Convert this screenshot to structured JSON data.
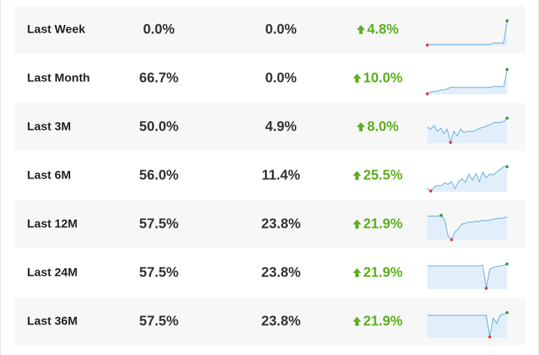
{
  "rows": [
    {
      "label": "Last Week",
      "col1": "0.0%",
      "col2": "0.0%",
      "change": "4.8%",
      "sparkline": [
        0,
        1,
        1,
        1,
        1,
        1,
        1,
        1,
        1,
        1,
        1,
        1,
        1,
        1,
        1,
        1,
        1,
        1,
        1,
        3,
        3,
        3,
        3,
        35
      ]
    },
    {
      "label": "Last Month",
      "col1": "66.7%",
      "col2": "0.0%",
      "change": "10.0%",
      "sparkline": [
        0,
        2,
        3,
        3,
        5,
        5,
        6,
        8,
        8,
        8,
        8,
        8,
        8,
        8,
        8,
        8,
        8,
        8,
        8,
        8,
        9,
        9,
        9,
        9,
        30
      ]
    },
    {
      "label": "Last 3M",
      "col1": "50.0%",
      "col2": "4.9%",
      "change": "8.0%",
      "sparkline": [
        14,
        12,
        15,
        10,
        13,
        8,
        12,
        0,
        10,
        6,
        12,
        9,
        10,
        10,
        10,
        12,
        13,
        14,
        15,
        16,
        18,
        18,
        18,
        19,
        22
      ]
    },
    {
      "label": "Last 6M",
      "col1": "56.0%",
      "col2": "11.4%",
      "change": "25.5%",
      "sparkline": [
        4,
        0,
        6,
        8,
        8,
        12,
        10,
        14,
        4,
        14,
        18,
        13,
        25,
        16,
        26,
        14,
        28,
        20,
        25,
        24,
        28,
        32,
        36,
        36
      ]
    },
    {
      "label": "Last 12M",
      "col1": "57.5%",
      "col2": "23.8%",
      "change": "21.9%",
      "sparkline": [
        60,
        60,
        60,
        60,
        62,
        50,
        10,
        0,
        20,
        28,
        40,
        42,
        45,
        44,
        48,
        46,
        50,
        48,
        50,
        52,
        54,
        54,
        56,
        58
      ]
    },
    {
      "label": "Last 24M",
      "col1": "57.5%",
      "col2": "23.8%",
      "change": "21.9%",
      "sparkline": [
        70,
        70,
        70,
        70,
        70,
        70,
        70,
        70,
        70,
        70,
        70,
        70,
        70,
        70,
        70,
        70,
        72,
        0,
        60,
        65,
        68,
        70,
        72,
        76
      ]
    },
    {
      "label": "Last 36M",
      "col1": "57.5%",
      "col2": "23.8%",
      "change": "21.9%",
      "sparkline": [
        80,
        80,
        80,
        80,
        80,
        80,
        80,
        80,
        80,
        80,
        80,
        80,
        80,
        80,
        80,
        80,
        80,
        80,
        0,
        70,
        50,
        80,
        85,
        90
      ]
    }
  ]
}
